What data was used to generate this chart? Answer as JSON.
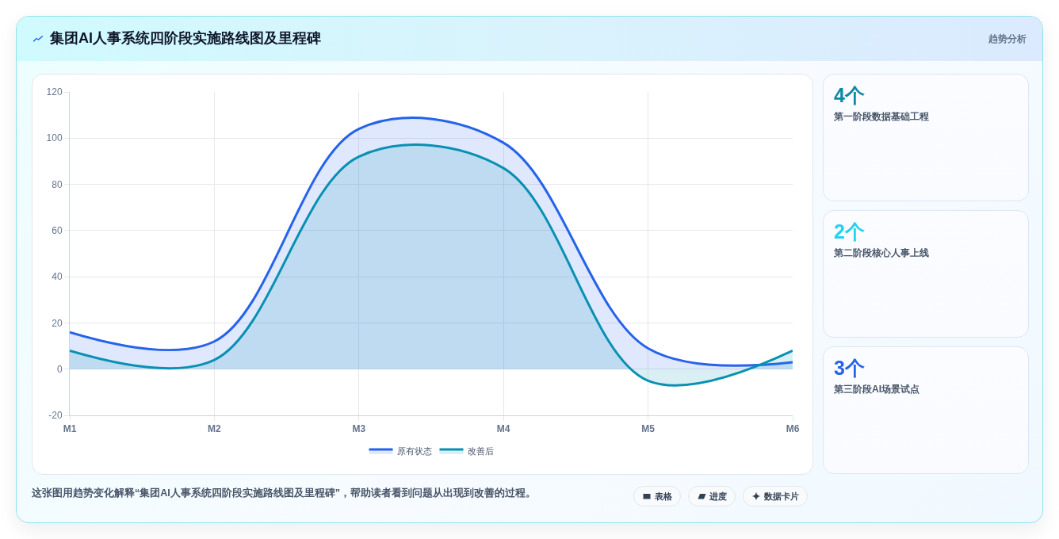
{
  "chart_data": [
    {
      "type": "area",
      "title": "集团AI人事系统四阶段实施路线图及里程碑",
      "categories": [
        "M1",
        "M2",
        "M3",
        "M4",
        "M5",
        "M6"
      ],
      "series": [
        {
          "name": "原有状态",
          "color": "#2563eb",
          "values": [
            16,
            12,
            104,
            98,
            9,
            3
          ]
        },
        {
          "name": "改善后",
          "color": "#0891b2",
          "values": [
            8,
            4,
            92,
            87,
            -5,
            8
          ]
        }
      ],
      "ylim": [
        -20,
        120
      ],
      "yticks": [
        -20,
        0,
        20,
        40,
        60,
        80,
        100,
        120
      ],
      "grid": true,
      "legend": "bottom",
      "annotations": [
        "趋势分析",
        "这张图用趋势变化解释“集团AI人事系统四阶段实施路线图及里程碑”，帮助读者看到问题从出现到改善的过程。",
        "表格",
        "进度",
        "数据卡片"
      ]
    },
    {
      "type": "other",
      "title": "4个",
      "subtitle": "第一阶段数据基础工程"
    },
    {
      "type": "other",
      "title": "2个",
      "subtitle": "第二阶段核心人事上线"
    },
    {
      "type": "other",
      "title": "3个",
      "subtitle": "第三阶段AI场景试点"
    }
  ]
}
